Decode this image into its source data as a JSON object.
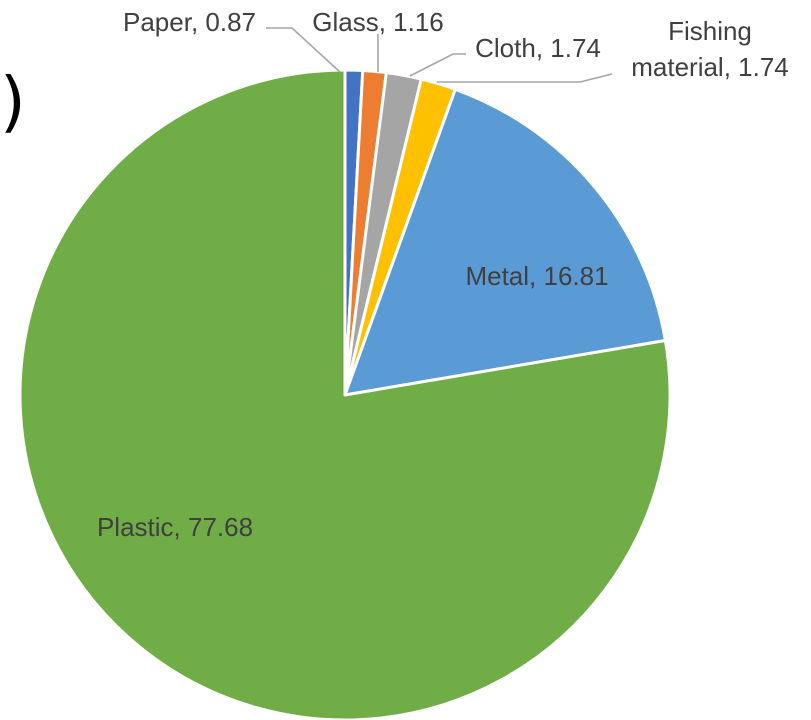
{
  "panel_mark": ")",
  "chart_data": {
    "type": "pie",
    "title": "",
    "slices": [
      {
        "label": "Paper",
        "value": 0.87,
        "color": "#4472c4",
        "display": "Paper, 0.87"
      },
      {
        "label": "Glass",
        "value": 1.16,
        "color": "#ed7d31",
        "display": "Glass, 1.16"
      },
      {
        "label": "Cloth",
        "value": 1.74,
        "color": "#a5a5a5",
        "display": "Cloth, 1.74"
      },
      {
        "label": "Fishing material",
        "value": 1.74,
        "color": "#ffc000",
        "display_lines": [
          "Fishing",
          "material, 1.74"
        ]
      },
      {
        "label": "Metal",
        "value": 16.81,
        "color": "#5b9bd5",
        "display": "Metal, 16.81"
      },
      {
        "label": "Plastic",
        "value": 77.68,
        "color": "#70ad47",
        "display": "Plastic, 77.68"
      }
    ],
    "legend": "none",
    "start": "12 o'clock",
    "direction": "clockwise"
  }
}
